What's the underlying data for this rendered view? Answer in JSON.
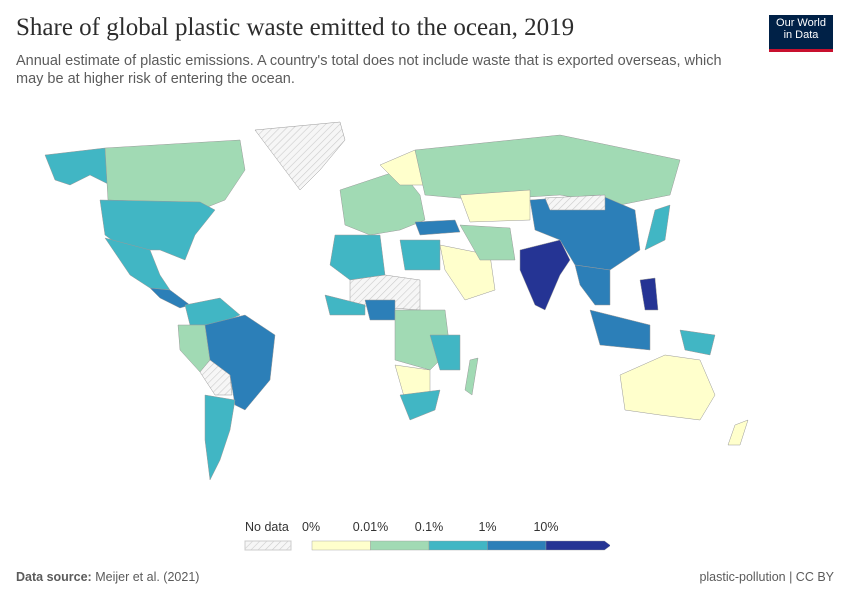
{
  "header": {
    "title": "Share of global plastic waste emitted to the ocean, 2019",
    "subtitle": "Annual estimate of plastic emissions. A country's total does not include waste that is exported overseas, which may be at higher risk of entering the ocean."
  },
  "logo": {
    "line1": "Our World",
    "line2": "in Data"
  },
  "legend": {
    "no_data_label": "No data",
    "bins": [
      {
        "label": "0%",
        "color": "#ffffcc"
      },
      {
        "label": "0.01%",
        "color": "#a1dab4"
      },
      {
        "label": "0.1%",
        "color": "#41b6c4"
      },
      {
        "label": "1%",
        "color": "#2c7fb8"
      },
      {
        "label": "10%",
        "color": "#253494"
      }
    ]
  },
  "footer": {
    "source_label": "Data source:",
    "source": "Meijer et al. (2021)",
    "slug": "plastic-pollution | CC BY"
  }
}
